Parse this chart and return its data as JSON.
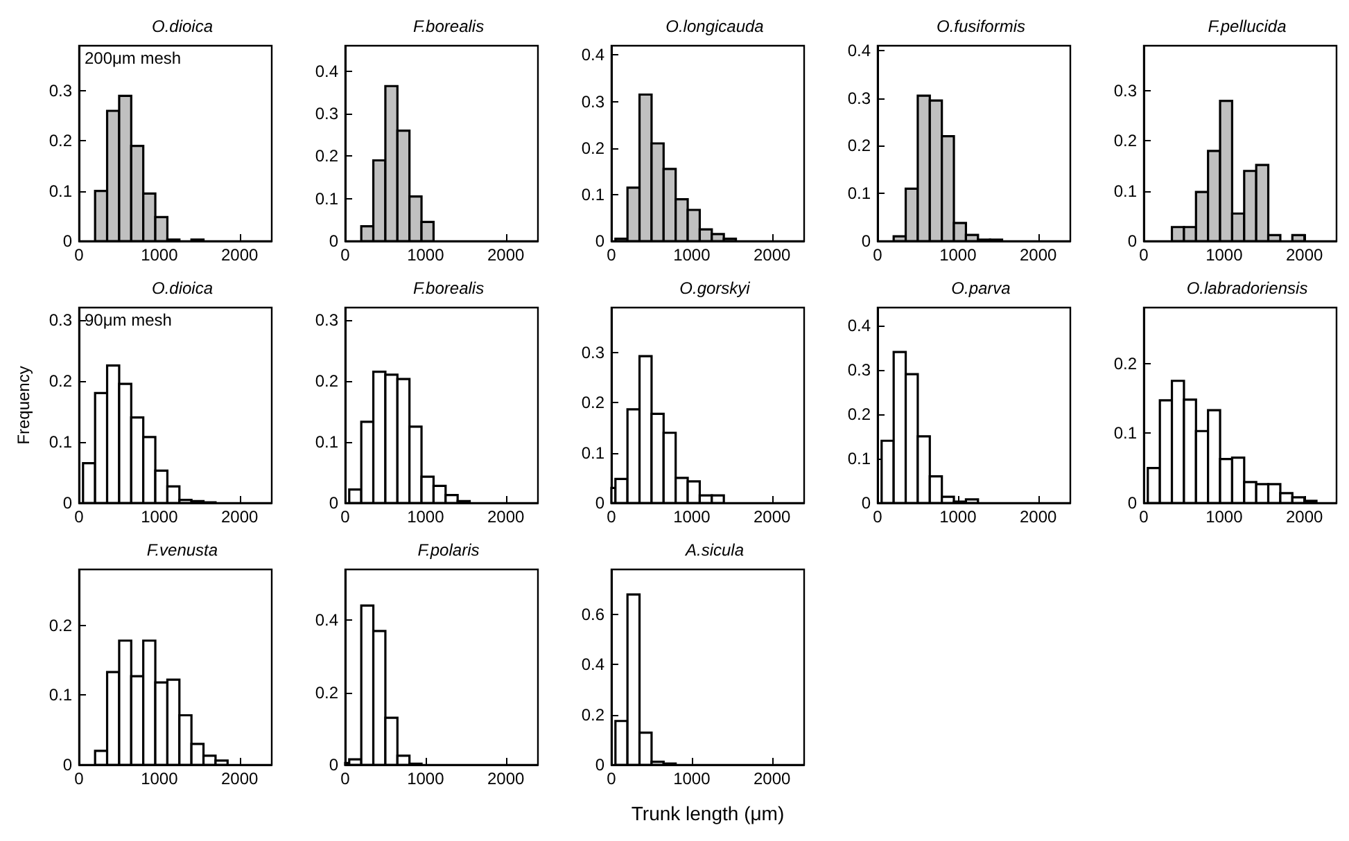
{
  "chart_data": [
    {
      "type": "histogram",
      "title": "O.dioica",
      "annotations": [
        "200μm mesh"
      ],
      "color": "#c0c0c0",
      "bins": [
        200,
        350,
        500,
        650,
        800,
        950,
        1100,
        1250,
        1400,
        1550
      ],
      "values": [
        0.1,
        0.26,
        0.29,
        0.19,
        0.095,
        0.048,
        0.003,
        null,
        0.003
      ],
      "xlim": [
        0,
        2400
      ],
      "xticks": [
        0,
        1000,
        2000
      ],
      "ylim": [
        0,
        0.39
      ],
      "yticks": [
        0,
        0.1,
        0.2,
        0.3
      ]
    },
    {
      "type": "histogram",
      "title": "F.borealis",
      "color": "#c0c0c0",
      "bins": [
        200,
        350,
        500,
        650,
        800,
        950,
        1100
      ],
      "values": [
        0.035,
        0.19,
        0.365,
        0.26,
        0.105,
        0.045
      ],
      "xlim": [
        0,
        2400
      ],
      "xticks": [
        0,
        1000,
        2000
      ],
      "ylim": [
        0,
        0.46
      ],
      "yticks": [
        0,
        0.1,
        0.2,
        0.3,
        0.4
      ]
    },
    {
      "type": "histogram",
      "title": "O.longicauda",
      "color": "#c0c0c0",
      "bins": [
        50,
        200,
        350,
        500,
        650,
        800,
        950,
        1100,
        1250,
        1400,
        1550
      ],
      "values": [
        0.005,
        0.115,
        0.315,
        0.21,
        0.155,
        0.09,
        0.067,
        0.025,
        0.015,
        0.005
      ],
      "xlim": [
        0,
        2400
      ],
      "xticks": [
        0,
        1000,
        2000
      ],
      "ylim": [
        0,
        0.42
      ],
      "yticks": [
        0,
        0.1,
        0.2,
        0.3,
        0.4
      ]
    },
    {
      "type": "histogram",
      "title": "O.fusiformis",
      "color": "#c0c0c0",
      "bins": [
        200,
        350,
        500,
        650,
        800,
        950,
        1100,
        1250,
        1400,
        1550
      ],
      "values": [
        0.01,
        0.11,
        0.305,
        0.295,
        0.22,
        0.038,
        0.013,
        0.003,
        0.003
      ],
      "xlim": [
        0,
        2400
      ],
      "xticks": [
        0,
        1000,
        2000
      ],
      "ylim": [
        0,
        0.41
      ],
      "yticks": [
        0,
        0.1,
        0.2,
        0.3,
        0.4
      ]
    },
    {
      "type": "histogram",
      "title": "F.pellucida",
      "color": "#c0c0c0",
      "bins": [
        350,
        500,
        650,
        800,
        950,
        1100,
        1250,
        1400,
        1550,
        1700,
        1850,
        2000
      ],
      "values": [
        0.028,
        0.028,
        0.098,
        0.18,
        0.28,
        0.055,
        0.14,
        0.152,
        0.012,
        null,
        0.012
      ],
      "xlim": [
        0,
        2400
      ],
      "xticks": [
        0,
        1000,
        2000
      ],
      "ylim": [
        0,
        0.39
      ],
      "yticks": [
        0,
        0.1,
        0.2,
        0.3
      ]
    },
    {
      "type": "histogram",
      "title": "O.dioica",
      "annotations": [
        "90μm mesh"
      ],
      "ylabel": "Frequency",
      "color": "#ffffff",
      "bins": [
        50,
        200,
        350,
        500,
        650,
        800,
        950,
        1100,
        1250,
        1400,
        1550,
        1700
      ],
      "values": [
        0.065,
        0.18,
        0.225,
        0.195,
        0.14,
        0.108,
        0.053,
        0.027,
        0.005,
        0.003,
        0.001
      ],
      "xlim": [
        0,
        2400
      ],
      "xticks": [
        0,
        1000,
        2000
      ],
      "ylim": [
        0,
        0.32
      ],
      "yticks": [
        0,
        0.1,
        0.2,
        0.3
      ]
    },
    {
      "type": "histogram",
      "title": "F.borealis",
      "color": "#ffffff",
      "bins": [
        50,
        200,
        350,
        500,
        650,
        800,
        950,
        1100,
        1250,
        1400,
        1550
      ],
      "values": [
        0.022,
        0.133,
        0.215,
        0.21,
        0.203,
        0.125,
        0.043,
        0.028,
        0.013,
        0.003
      ],
      "xlim": [
        0,
        2400
      ],
      "xticks": [
        0,
        1000,
        2000
      ],
      "ylim": [
        0,
        0.32
      ],
      "yticks": [
        0,
        0.1,
        0.2,
        0.3
      ]
    },
    {
      "type": "histogram",
      "title": "O.gorskyi",
      "color": "#ffffff",
      "bins": [
        0,
        50,
        200,
        350,
        500,
        650,
        800,
        950,
        1100,
        1250,
        1400
      ],
      "values": [
        0.03,
        0.048,
        0.187,
        0.293,
        0.178,
        0.14,
        0.05,
        0.043,
        0.015,
        0.015
      ],
      "xlim": [
        0,
        2400
      ],
      "xticks": [
        0,
        1000,
        2000
      ],
      "ylim": [
        0,
        0.39
      ],
      "yticks": [
        0,
        0.1,
        0.2,
        0.3
      ]
    },
    {
      "type": "histogram",
      "title": "O.parva",
      "color": "#ffffff",
      "bins": [
        50,
        200,
        350,
        500,
        650,
        800,
        950,
        1100,
        1250
      ],
      "values": [
        0.14,
        0.34,
        0.29,
        0.15,
        0.06,
        0.014,
        0.003,
        0.008
      ],
      "xlim": [
        0,
        2400
      ],
      "xticks": [
        0,
        1000,
        2000
      ],
      "ylim": [
        0,
        0.44
      ],
      "yticks": [
        0,
        0.1,
        0.2,
        0.3,
        0.4
      ]
    },
    {
      "type": "histogram",
      "title": "O.labradoriensis",
      "color": "#ffffff",
      "bins": [
        50,
        200,
        350,
        500,
        650,
        800,
        950,
        1100,
        1250,
        1400,
        1550,
        1700,
        1850,
        2000,
        2150
      ],
      "values": [
        0.05,
        0.147,
        0.175,
        0.148,
        0.103,
        0.133,
        0.063,
        0.065,
        0.03,
        0.027,
        0.027,
        0.014,
        0.008,
        0.003
      ],
      "xlim": [
        0,
        2400
      ],
      "xticks": [
        0,
        1000,
        2000
      ],
      "ylim": [
        0,
        0.28
      ],
      "yticks": [
        0,
        0.1,
        0.2
      ]
    },
    {
      "type": "histogram",
      "title": "F.venusta",
      "color": "#ffffff",
      "bins": [
        200,
        350,
        500,
        650,
        800,
        950,
        1100,
        1250,
        1400,
        1550,
        1700,
        1850
      ],
      "values": [
        0.02,
        0.133,
        0.178,
        0.127,
        0.178,
        0.118,
        0.122,
        0.071,
        0.03,
        0.013,
        0.006
      ],
      "xlim": [
        0,
        2400
      ],
      "xticks": [
        0,
        1000,
        2000
      ],
      "ylim": [
        0,
        0.28
      ],
      "yticks": [
        0,
        0.1,
        0.2
      ]
    },
    {
      "type": "histogram",
      "title": "F.polaris",
      "color": "#ffffff",
      "bins": [
        0,
        50,
        200,
        350,
        500,
        650,
        800,
        950
      ],
      "values": [
        0.005,
        0.015,
        0.44,
        0.37,
        0.13,
        0.025,
        0.003
      ],
      "xlim": [
        0,
        2400
      ],
      "xticks": [
        0,
        1000,
        2000
      ],
      "ylim": [
        0,
        0.54
      ],
      "yticks": [
        0,
        0.2,
        0.4
      ]
    },
    {
      "type": "histogram",
      "title": "A.sicula",
      "xlabel": "Trunk length (μm)",
      "color": "#ffffff",
      "bins": [
        50,
        200,
        350,
        500,
        650,
        800
      ],
      "values": [
        0.175,
        0.68,
        0.128,
        0.012,
        0.005
      ],
      "xlim": [
        0,
        2400
      ],
      "xticks": [
        0,
        1000,
        2000
      ],
      "ylim": [
        0,
        0.78
      ],
      "yticks": [
        0,
        0.2,
        0.4,
        0.6
      ]
    }
  ]
}
